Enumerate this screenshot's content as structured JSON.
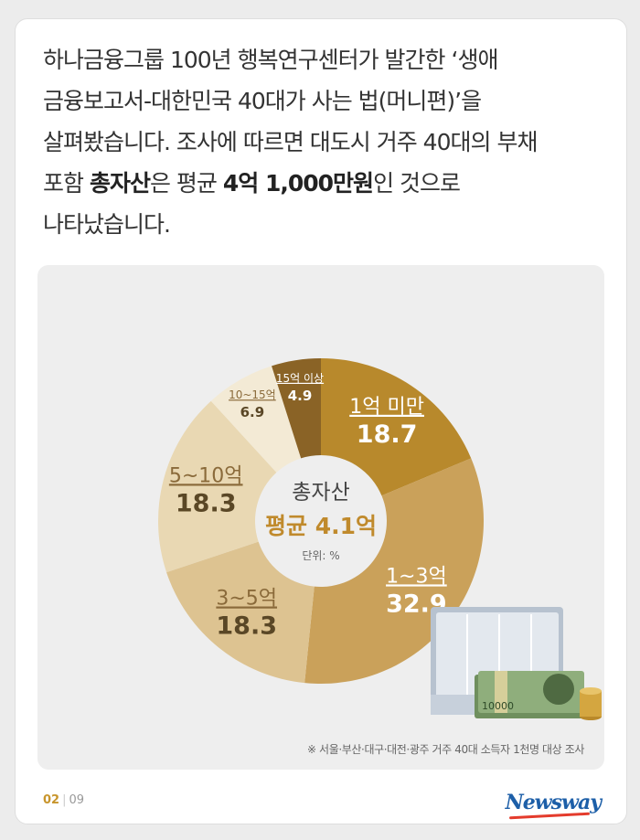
{
  "intro": {
    "line1": "하나금융그룹 100년 행복연구센터가 발간한 ‘생애",
    "line2": "금융보고서-대한민국 40대가 사는 법(머니편)’을",
    "line3": "살펴봤습니다. 조사에 따르면 대도시 거주 40대의 부채",
    "line4_a": "포함 ",
    "line4_bold1": "총자산",
    "line4_b": "은 평균 ",
    "line4_bold2": "4억 1,000만원",
    "line4_c": "인 것으로",
    "line5": "나타났습니다."
  },
  "chart_data": {
    "type": "pie",
    "center_title": "총자산",
    "center_avg": "평균 4.1억",
    "unit": "단위: %",
    "slices": [
      {
        "label": "1억 미만",
        "value": 18.7,
        "value_text": "18.7",
        "color": "#b8892c"
      },
      {
        "label": "1~3억",
        "value": 32.9,
        "value_text": "32.9",
        "color": "#caa15a"
      },
      {
        "label": "3~5억",
        "value": 18.3,
        "value_text": "18.3",
        "color": "#ddc391"
      },
      {
        "label": "5~10억",
        "value": 18.3,
        "value_text": "18.3",
        "color": "#e9d8b3"
      },
      {
        "label": "10~15억",
        "value": 6.9,
        "value_text": "6.9",
        "color": "#f3ead5"
      },
      {
        "label": "15억 이상",
        "value": 4.9,
        "value_text": "4.9",
        "color": "#8a6326"
      }
    ]
  },
  "source": "※ 서울·부산·대구·대전·광주 거주 40대 소득자 1천명 대상 조사",
  "banknote_text": "10000",
  "footer": {
    "current": "02",
    "total": "09",
    "logo": "Newsway"
  }
}
